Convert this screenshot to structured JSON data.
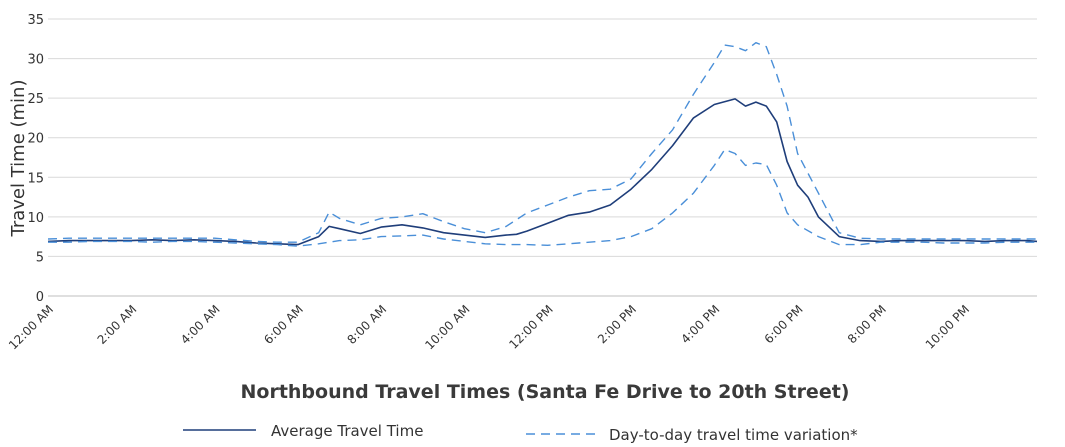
{
  "chart_data": {
    "type": "line",
    "title": "Northbound Travel Times (Santa Fe Drive to 20th Street)",
    "xlabel": "",
    "ylabel": "Travel Time (min)",
    "ylim": [
      0,
      35
    ],
    "yticks": [
      "0",
      "5",
      "10",
      "15",
      "20",
      "25",
      "30",
      "35"
    ],
    "xlim": [
      0,
      23.75
    ],
    "xticks": [
      {
        "label": "12:00 AM",
        "hour": 0
      },
      {
        "label": "2:00 AM",
        "hour": 2
      },
      {
        "label": "4:00 AM",
        "hour": 4
      },
      {
        "label": "6:00 AM",
        "hour": 6
      },
      {
        "label": "8:00 AM",
        "hour": 8
      },
      {
        "label": "10:00 AM",
        "hour": 10
      },
      {
        "label": "12:00 PM",
        "hour": 12
      },
      {
        "label": "2:00 PM",
        "hour": 14
      },
      {
        "label": "4:00 PM",
        "hour": 16
      },
      {
        "label": "6:00 PM",
        "hour": 18
      },
      {
        "label": "8:00 PM",
        "hour": 20
      },
      {
        "label": "10:00 PM",
        "hour": 22
      }
    ],
    "grid": "horizontal",
    "legend": "bottom",
    "colors": {
      "average": "#1f3e7a",
      "variation": "#4a8fd8",
      "grid": "#d9d9d9"
    },
    "series": [
      {
        "name": "Average Travel Time",
        "style": "solid",
        "x": [
          0,
          0.5,
          1,
          1.5,
          2,
          2.5,
          3,
          3.5,
          4,
          4.5,
          5,
          5.5,
          6,
          6.5,
          6.75,
          7,
          7.5,
          8,
          8.5,
          9,
          9.5,
          10,
          10.5,
          11,
          11.25,
          11.5,
          12,
          12.5,
          13,
          13.5,
          14,
          14.5,
          15,
          15.5,
          16,
          16.5,
          16.75,
          17,
          17.25,
          17.5,
          17.75,
          18,
          18.25,
          18.5,
          19,
          19.5,
          20,
          20.5,
          21,
          21.5,
          22,
          22.5,
          23,
          23.5,
          23.75
        ],
        "values": [
          6.9,
          7.0,
          7.0,
          7.0,
          7.0,
          7.1,
          7.0,
          7.1,
          7.0,
          6.9,
          6.7,
          6.6,
          6.5,
          7.5,
          8.8,
          8.5,
          7.9,
          8.7,
          9.0,
          8.6,
          8.0,
          7.7,
          7.4,
          7.7,
          7.8,
          8.2,
          9.2,
          10.2,
          10.6,
          11.5,
          13.5,
          16.0,
          19.0,
          22.5,
          24.2,
          24.9,
          24.0,
          24.5,
          24.0,
          22.0,
          17.0,
          14.0,
          12.5,
          10.0,
          7.5,
          7.0,
          6.9,
          7.0,
          7.0,
          7.0,
          7.0,
          6.9,
          7.0,
          7.0,
          6.9
        ]
      },
      {
        "name": "Day-to-day travel time variation*",
        "style": "dashed",
        "x": [
          0,
          0.5,
          1,
          1.5,
          2,
          2.5,
          3,
          3.5,
          4,
          4.5,
          5,
          5.5,
          6,
          6.5,
          6.75,
          7,
          7.5,
          8,
          8.5,
          9,
          9.5,
          10,
          10.5,
          11,
          11.5,
          12,
          12.5,
          13,
          13.5,
          14,
          14.5,
          15,
          15.5,
          16,
          16.25,
          16.5,
          16.75,
          17,
          17.25,
          17.5,
          17.75,
          18,
          18.5,
          19,
          19.5,
          20,
          20.5,
          21,
          21.5,
          22,
          22.5,
          23,
          23.5,
          23.75
        ],
        "values": [
          7.2,
          7.3,
          7.3,
          7.3,
          7.3,
          7.3,
          7.3,
          7.3,
          7.3,
          7.1,
          6.9,
          6.8,
          6.8,
          8.0,
          10.6,
          9.8,
          9.0,
          9.8,
          10.0,
          10.4,
          9.4,
          8.5,
          8.0,
          8.8,
          10.5,
          11.5,
          12.5,
          13.3,
          13.5,
          14.8,
          18.0,
          21.0,
          25.5,
          29.5,
          31.7,
          31.5,
          31.0,
          32.0,
          31.5,
          28.0,
          24.0,
          18.0,
          13.0,
          8.0,
          7.3,
          7.2,
          7.2,
          7.2,
          7.2,
          7.2,
          7.2,
          7.2,
          7.2,
          7.2
        ]
      },
      {
        "name": "",
        "style": "dashed",
        "x": [
          0,
          0.5,
          1,
          1.5,
          2,
          2.5,
          3,
          3.5,
          4,
          4.5,
          5,
          5.5,
          6,
          6.5,
          7,
          7.5,
          8,
          8.5,
          9,
          9.5,
          10,
          10.5,
          11,
          11.5,
          12,
          12.5,
          13,
          13.5,
          14,
          14.5,
          15,
          15.5,
          16,
          16.25,
          16.5,
          16.75,
          17,
          17.25,
          17.5,
          17.75,
          18,
          18.5,
          19,
          19.5,
          20,
          20.5,
          21,
          21.5,
          22,
          22.5,
          23,
          23.5,
          23.75
        ],
        "values": [
          6.8,
          6.8,
          6.9,
          6.9,
          6.9,
          6.8,
          6.9,
          6.9,
          6.8,
          6.7,
          6.6,
          6.5,
          6.3,
          6.6,
          7.0,
          7.1,
          7.5,
          7.6,
          7.7,
          7.2,
          6.9,
          6.6,
          6.5,
          6.5,
          6.4,
          6.6,
          6.8,
          7.0,
          7.5,
          8.5,
          10.5,
          13.0,
          16.5,
          18.5,
          18.0,
          16.5,
          16.8,
          16.6,
          14.0,
          10.5,
          9.0,
          7.5,
          6.5,
          6.5,
          6.8,
          6.8,
          6.8,
          6.7,
          6.7,
          6.7,
          6.8,
          6.8,
          6.8
        ]
      }
    ]
  }
}
